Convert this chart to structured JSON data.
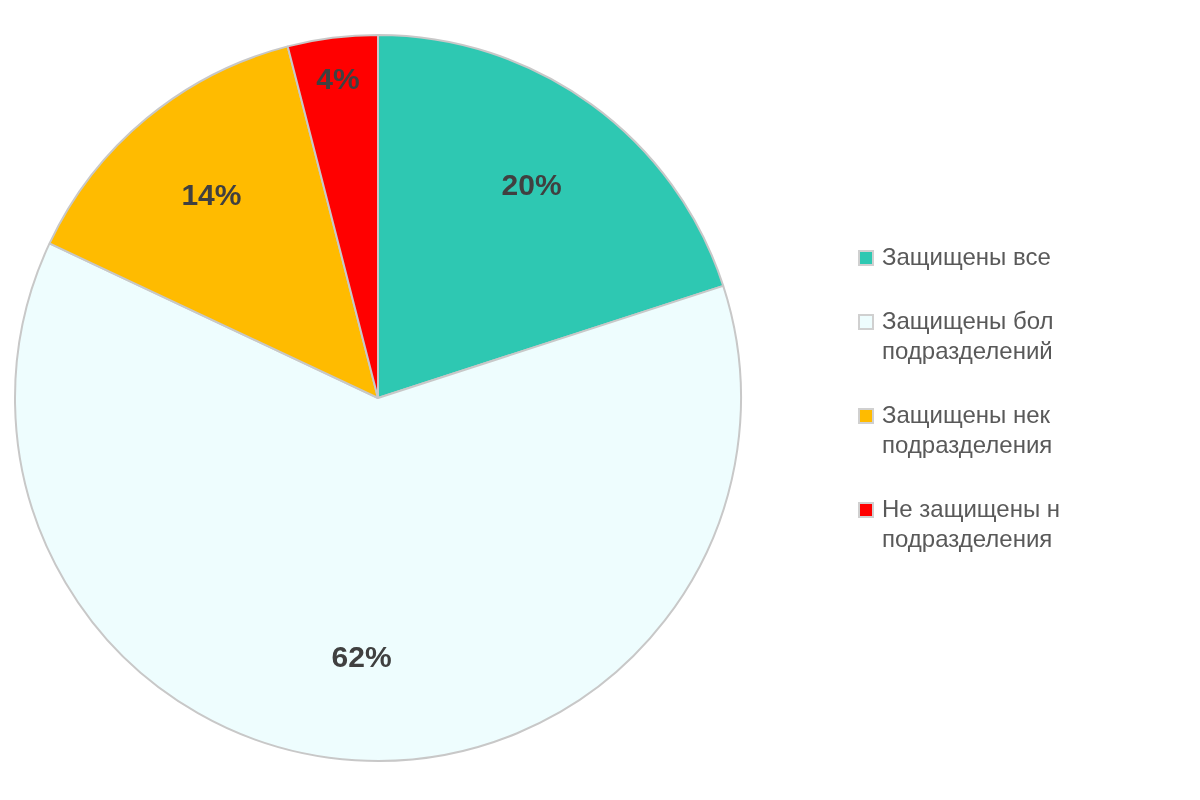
{
  "chart_data": {
    "type": "pie",
    "categories": [
      "Защищены все",
      "Защищены бол\nподразделений",
      "Защищены нек\nподразделения",
      "Не защищены н\nподразделения"
    ],
    "values": [
      20,
      62,
      14,
      4
    ],
    "colors": [
      "#2ec8b2",
      "#eefdfe",
      "#ffbb00",
      "#ff0000"
    ],
    "value_labels": [
      "20%",
      "62%",
      "14%",
      "4%"
    ],
    "legend": "right"
  }
}
